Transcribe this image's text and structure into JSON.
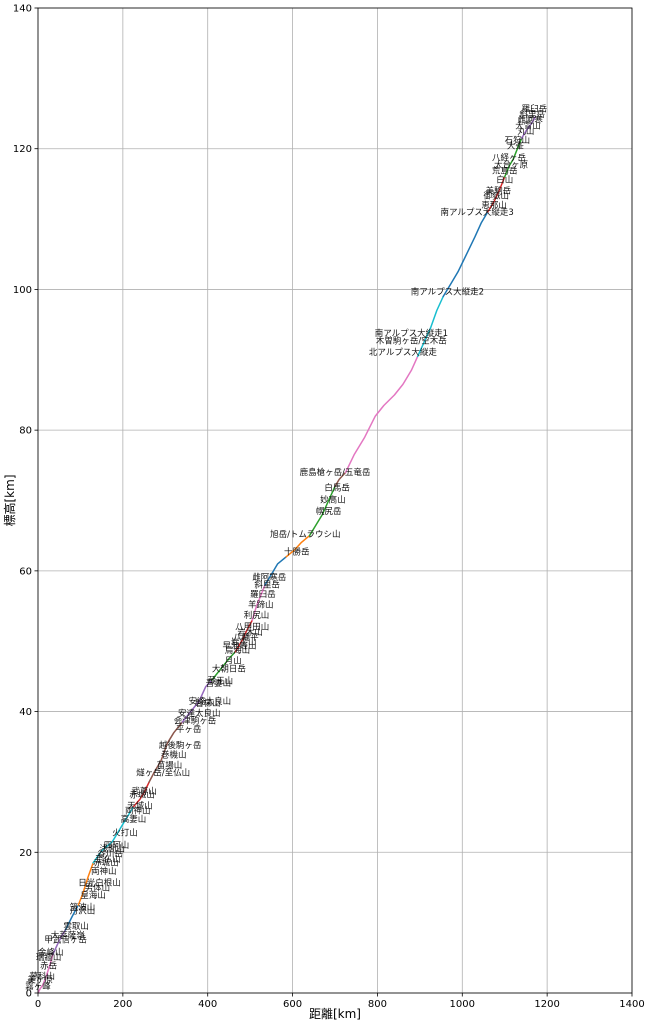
{
  "chart_data": {
    "type": "line",
    "xlabel": "距離[km]",
    "ylabel": "標高[km]",
    "xlim": [
      0,
      1400
    ],
    "ylim": [
      0,
      140
    ],
    "xticks": [
      0,
      200,
      400,
      600,
      800,
      1000,
      1200,
      1400
    ],
    "yticks": [
      0,
      20,
      40,
      60,
      80,
      100,
      120,
      140
    ],
    "grid": true,
    "segments": [
      {
        "color": "#e377c2",
        "points": [
          [
            0,
            0
          ],
          [
            5,
            0.6
          ],
          [
            12,
            1.2
          ],
          [
            20,
            2.5
          ],
          [
            28,
            4
          ],
          [
            35,
            5.5
          ]
        ]
      },
      {
        "color": "#9467bd",
        "points": [
          [
            35,
            5.5
          ],
          [
            45,
            6.8
          ],
          [
            55,
            8
          ],
          [
            65,
            9
          ]
        ]
      },
      {
        "color": "#1f77b4",
        "points": [
          [
            65,
            9
          ],
          [
            80,
            10.8
          ],
          [
            95,
            12.5
          ]
        ]
      },
      {
        "color": "#ff7f0e",
        "points": [
          [
            95,
            12.5
          ],
          [
            105,
            14
          ],
          [
            118,
            16.5
          ],
          [
            130,
            18.5
          ]
        ]
      },
      {
        "color": "#17becf",
        "points": [
          [
            130,
            18.5
          ],
          [
            150,
            20.2
          ],
          [
            175,
            21.5
          ],
          [
            195,
            23.5
          ],
          [
            210,
            25
          ],
          [
            225,
            26.5
          ]
        ]
      },
      {
        "color": "#d62728",
        "points": [
          [
            225,
            26.5
          ],
          [
            240,
            27.5
          ],
          [
            250,
            28.5
          ],
          [
            262,
            30
          ]
        ]
      },
      {
        "color": "#8c564b",
        "points": [
          [
            262,
            30
          ],
          [
            275,
            31.5
          ],
          [
            290,
            33
          ],
          [
            305,
            35.5
          ],
          [
            320,
            37
          ],
          [
            340,
            38.5
          ]
        ]
      },
      {
        "color": "#9467bd",
        "points": [
          [
            340,
            38.5
          ],
          [
            360,
            40
          ],
          [
            380,
            41.5
          ],
          [
            395,
            43.5
          ],
          [
            410,
            44.5
          ]
        ]
      },
      {
        "color": "#2ca02c",
        "points": [
          [
            410,
            44.5
          ],
          [
            430,
            46
          ],
          [
            450,
            47.5
          ],
          [
            465,
            48.5
          ]
        ]
      },
      {
        "color": "#d62728",
        "points": [
          [
            465,
            48.5
          ],
          [
            480,
            50
          ],
          [
            492,
            51.5
          ],
          [
            505,
            53
          ]
        ]
      },
      {
        "color": "#e377c2",
        "points": [
          [
            505,
            53
          ],
          [
            515,
            55
          ],
          [
            525,
            56.5
          ],
          [
            535,
            58
          ]
        ]
      },
      {
        "color": "#1f77b4",
        "points": [
          [
            535,
            58
          ],
          [
            550,
            59.5
          ],
          [
            565,
            61
          ],
          [
            585,
            62
          ]
        ]
      },
      {
        "color": "#ff7f0e",
        "points": [
          [
            585,
            62
          ],
          [
            605,
            63
          ],
          [
            620,
            64
          ],
          [
            640,
            65
          ]
        ]
      },
      {
        "color": "#2ca02c",
        "points": [
          [
            640,
            65
          ],
          [
            655,
            66.5
          ],
          [
            670,
            68
          ],
          [
            685,
            70
          ],
          [
            700,
            72
          ]
        ]
      },
      {
        "color": "#8c564b",
        "points": [
          [
            700,
            72
          ],
          [
            710,
            73
          ],
          [
            725,
            74
          ]
        ]
      },
      {
        "color": "#e377c2",
        "points": [
          [
            725,
            74
          ],
          [
            745,
            76.5
          ],
          [
            770,
            79
          ],
          [
            795,
            82
          ],
          [
            815,
            83.5
          ],
          [
            840,
            85
          ],
          [
            860,
            86.5
          ],
          [
            880,
            88.5
          ],
          [
            895,
            90.5
          ]
        ]
      },
      {
        "color": "#17becf",
        "points": [
          [
            895,
            90.5
          ],
          [
            910,
            92.5
          ],
          [
            925,
            94.5
          ],
          [
            940,
            97
          ],
          [
            955,
            99
          ]
        ]
      },
      {
        "color": "#1f77b4",
        "points": [
          [
            955,
            99
          ],
          [
            975,
            101
          ],
          [
            990,
            102.5
          ],
          [
            1010,
            105
          ],
          [
            1030,
            107.5
          ],
          [
            1045,
            109.5
          ],
          [
            1060,
            111
          ]
        ]
      },
      {
        "color": "#d62728",
        "points": [
          [
            1060,
            111
          ],
          [
            1075,
            112.5
          ],
          [
            1090,
            114.5
          ],
          [
            1100,
            116
          ]
        ]
      },
      {
        "color": "#2ca02c",
        "points": [
          [
            1100,
            116
          ],
          [
            1110,
            117.5
          ],
          [
            1120,
            118.5
          ],
          [
            1130,
            120
          ],
          [
            1140,
            121.5
          ]
        ]
      },
      {
        "color": "#9467bd",
        "points": [
          [
            1140,
            121.5
          ],
          [
            1150,
            122.5
          ],
          [
            1162,
            123.5
          ],
          [
            1172,
            124.5
          ]
        ]
      }
    ],
    "annotations": [
      {
        "x": 1170,
        "y": 125.3,
        "text": "羅臼岳"
      },
      {
        "x": 1165,
        "y": 124.5,
        "text": "斜里岳"
      },
      {
        "x": 1160,
        "y": 123.7,
        "text": "雌阿寒"
      },
      {
        "x": 1155,
        "y": 122.9,
        "text": "大雪山"
      },
      {
        "x": 1150,
        "y": 122.1,
        "text": "丸山"
      },
      {
        "x": 1130,
        "y": 120.8,
        "text": "石狩山"
      },
      {
        "x": 1125,
        "y": 120,
        "text": "大峯"
      },
      {
        "x": 1110,
        "y": 118.3,
        "text": "八経ヶ岳"
      },
      {
        "x": 1115,
        "y": 117.3,
        "text": "大台ヶ原"
      },
      {
        "x": 1100,
        "y": 116.5,
        "text": "荒島岳"
      },
      {
        "x": 1100,
        "y": 115.2,
        "text": "白山"
      },
      {
        "x": 1085,
        "y": 113.6,
        "text": "美駒岳"
      },
      {
        "x": 1080,
        "y": 112.9,
        "text": "御嶽山"
      },
      {
        "x": 1075,
        "y": 111.6,
        "text": "恵那山"
      },
      {
        "x": 1035,
        "y": 110.6,
        "text": "南アルプス大縦走3"
      },
      {
        "x": 965,
        "y": 99.3,
        "text": "南アルプス大縦走2"
      },
      {
        "x": 880,
        "y": 93.4,
        "text": "南アルプス大縦走1"
      },
      {
        "x": 880,
        "y": 92.3,
        "text": "木曽駒ヶ岳/空木岳"
      },
      {
        "x": 860,
        "y": 90.7,
        "text": "北アルプス大縦走"
      },
      {
        "x": 700,
        "y": 73.6,
        "text": "鹿島槍ヶ岳/五竜岳"
      },
      {
        "x": 705,
        "y": 71.4,
        "text": "白馬岳"
      },
      {
        "x": 695,
        "y": 69.7,
        "text": "妙高山"
      },
      {
        "x": 685,
        "y": 68.1,
        "text": "幌尻岳"
      },
      {
        "x": 630,
        "y": 64.8,
        "text": "旭岳/トムラウシ山"
      },
      {
        "x": 610,
        "y": 62.3,
        "text": "十勝岳"
      },
      {
        "x": 545,
        "y": 58.7,
        "text": "雌阿寒岳"
      },
      {
        "x": 540,
        "y": 57.6,
        "text": "斜里岳"
      },
      {
        "x": 530,
        "y": 56.3,
        "text": "羅臼岳"
      },
      {
        "x": 525,
        "y": 54.8,
        "text": "羊蹄山"
      },
      {
        "x": 515,
        "y": 53.3,
        "text": "利尻山"
      },
      {
        "x": 505,
        "y": 51.7,
        "text": "八甲田山"
      },
      {
        "x": 500,
        "y": 50.9,
        "text": "岩木山"
      },
      {
        "x": 490,
        "y": 50.2,
        "text": "八幡平"
      },
      {
        "x": 485,
        "y": 49.5,
        "text": "岩手山"
      },
      {
        "x": 475,
        "y": 49,
        "text": "早池峰山"
      },
      {
        "x": 470,
        "y": 48.3,
        "text": "鳥海山"
      },
      {
        "x": 460,
        "y": 46.8,
        "text": "月山"
      },
      {
        "x": 450,
        "y": 45.7,
        "text": "大朝日岳"
      },
      {
        "x": 430,
        "y": 44,
        "text": "蔵王山"
      },
      {
        "x": 425,
        "y": 43.6,
        "text": "吾妻山"
      },
      {
        "x": 405,
        "y": 41.1,
        "text": "安達太良山"
      },
      {
        "x": 400,
        "y": 40.8,
        "text": "磐梯山"
      },
      {
        "x": 380,
        "y": 39.4,
        "text": "安達太良山"
      },
      {
        "x": 370,
        "y": 38.3,
        "text": "会津駒ヶ岳"
      },
      {
        "x": 355,
        "y": 37.1,
        "text": "平ヶ岳"
      },
      {
        "x": 335,
        "y": 34.8,
        "text": "越後駒ヶ岳"
      },
      {
        "x": 320,
        "y": 33.5,
        "text": "巻機山"
      },
      {
        "x": 310,
        "y": 32,
        "text": "苗場山"
      },
      {
        "x": 295,
        "y": 30.9,
        "text": "燧ヶ岳/至仏山"
      },
      {
        "x": 250,
        "y": 28.3,
        "text": "武尊山"
      },
      {
        "x": 245,
        "y": 27.8,
        "text": "赤城山"
      },
      {
        "x": 240,
        "y": 26.2,
        "text": "天城山"
      },
      {
        "x": 235,
        "y": 25.5,
        "text": "両神山"
      },
      {
        "x": 225,
        "y": 24.3,
        "text": "高妻山"
      },
      {
        "x": 205,
        "y": 22.4,
        "text": "火打山"
      },
      {
        "x": 185,
        "y": 20.6,
        "text": "四阿山"
      },
      {
        "x": 175,
        "y": 20.1,
        "text": "浅間山"
      },
      {
        "x": 170,
        "y": 19.4,
        "text": "谷川岳"
      },
      {
        "x": 165,
        "y": 18.6,
        "text": "至仏山"
      },
      {
        "x": 160,
        "y": 18.1,
        "text": "赤城山"
      },
      {
        "x": 155,
        "y": 16.9,
        "text": "両神山"
      },
      {
        "x": 145,
        "y": 15.3,
        "text": "日光白根山"
      },
      {
        "x": 140,
        "y": 14.6,
        "text": "男体山"
      },
      {
        "x": 130,
        "y": 13.5,
        "text": "皇海山"
      },
      {
        "x": 105,
        "y": 11.8,
        "text": "筑波山"
      },
      {
        "x": 105,
        "y": 11.3,
        "text": "丹沢山"
      },
      {
        "x": 90,
        "y": 9.1,
        "text": "雲取山"
      },
      {
        "x": 70,
        "y": 7.8,
        "text": "大菩薩嶺"
      },
      {
        "x": 65,
        "y": 7.2,
        "text": "甲武信ヶ岳"
      },
      {
        "x": 30,
        "y": 5.4,
        "text": "金峰山"
      },
      {
        "x": 25,
        "y": 4.7,
        "text": "瑞牆山"
      },
      {
        "x": 25,
        "y": 3.5,
        "text": "赤岳"
      },
      {
        "x": 10,
        "y": 2,
        "text": "蓼科山"
      },
      {
        "x": 5,
        "y": 1.5,
        "text": "美ヶ原"
      },
      {
        "x": 0,
        "y": 0.6,
        "text": "霧ヶ峰"
      }
    ]
  }
}
